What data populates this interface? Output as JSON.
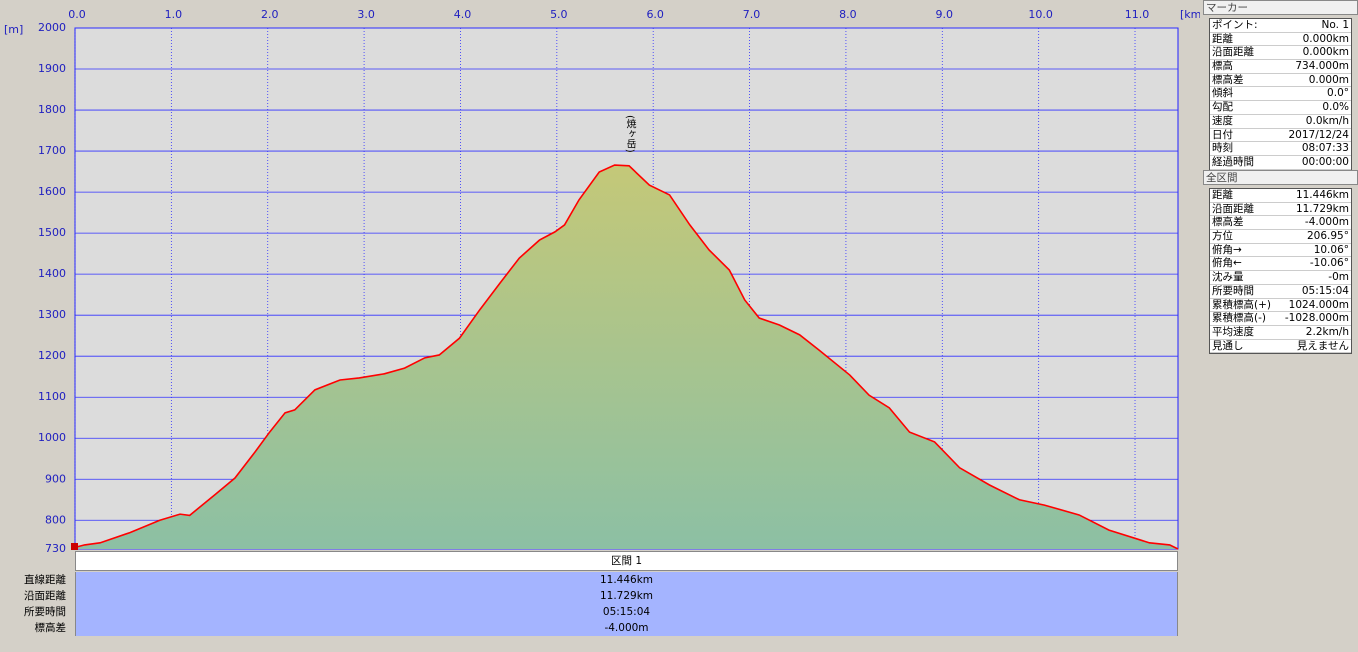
{
  "chart_data": {
    "type": "area",
    "x_label": "[km]",
    "y_label": "[m]",
    "x": [
      0,
      0.1,
      0.26,
      0.57,
      0.88,
      1.09,
      1.19,
      1.45,
      1.66,
      1.87,
      2.02,
      2.18,
      2.28,
      2.49,
      2.75,
      2.95,
      3.21,
      3.42,
      3.63,
      3.78,
      3.99,
      4.2,
      4.41,
      4.61,
      4.82,
      4.98,
      5.08,
      5.23,
      5.44,
      5.6,
      5.75,
      5.96,
      6.17,
      6.38,
      6.58,
      6.79,
      6.95,
      7.1,
      7.31,
      7.52,
      7.72,
      8.04,
      8.24,
      8.45,
      8.66,
      8.92,
      9.18,
      9.49,
      9.8,
      10.06,
      10.42,
      10.73,
      11.15,
      11.36,
      11.446
    ],
    "values": [
      734,
      740,
      745,
      770,
      800,
      815,
      812,
      862,
      903,
      967,
      1015,
      1062,
      1069,
      1118,
      1142,
      1147,
      1157,
      1171,
      1196,
      1203,
      1244,
      1313,
      1378,
      1439,
      1483,
      1503,
      1520,
      1581,
      1649,
      1666,
      1664,
      1617,
      1593,
      1520,
      1459,
      1410,
      1337,
      1293,
      1276,
      1252,
      1215,
      1154,
      1105,
      1074,
      1015,
      991,
      928,
      886,
      850,
      837,
      813,
      776,
      745,
      740,
      730
    ],
    "color": "#ff0000",
    "xlim": [
      0,
      11.446
    ],
    "ylim": [
      730,
      2000
    ],
    "xticks": [
      {
        "value": 0,
        "label": "0.0"
      },
      {
        "value": 1,
        "label": "1.0"
      },
      {
        "value": 2,
        "label": "2.0"
      },
      {
        "value": 3,
        "label": "3.0"
      },
      {
        "value": 4,
        "label": "4.0"
      },
      {
        "value": 5,
        "label": "5.0"
      },
      {
        "value": 6,
        "label": "6.0"
      },
      {
        "value": 7,
        "label": "7.0"
      },
      {
        "value": 8,
        "label": "8.0"
      },
      {
        "value": 9,
        "label": "9.0"
      },
      {
        "value": 10,
        "label": "10.0"
      },
      {
        "value": 11,
        "label": "11.0"
      }
    ],
    "yticks": [
      730,
      800,
      900,
      1000,
      1100,
      1200,
      1300,
      1400,
      1500,
      1600,
      1700,
      1800,
      1900,
      2000
    ],
    "grid": true,
    "annotation": "(焼ヶ岳)"
  },
  "marker_panel": {
    "title": "マーカー",
    "rows": [
      [
        "ポイント:",
        "No. 1"
      ],
      [
        "距離",
        "0.000km"
      ],
      [
        "沿面距離",
        "0.000km"
      ],
      [
        "標高",
        "734.000m"
      ],
      [
        "標高差",
        "0.000m"
      ],
      [
        "傾斜",
        "0.0°"
      ],
      [
        "勾配",
        "0.0%"
      ],
      [
        "速度",
        "0.0km/h"
      ],
      [
        "日付",
        "2017/12/24"
      ],
      [
        "時刻",
        "08:07:33"
      ],
      [
        "経過時間",
        "00:00:00"
      ]
    ]
  },
  "total_panel": {
    "title": "全区間",
    "rows": [
      [
        "距離",
        "11.446km"
      ],
      [
        "沿面距離",
        "11.729km"
      ],
      [
        "標高差",
        "-4.000m"
      ],
      [
        "方位",
        "206.95°"
      ],
      [
        "俯角→",
        "10.06°"
      ],
      [
        "俯角←",
        "-10.06°"
      ],
      [
        "沈み量",
        "-0m"
      ],
      [
        "所要時間",
        "05:15:04"
      ],
      [
        "累積標高(+)",
        "1024.000m"
      ],
      [
        "累積標高(-)",
        "-1028.000m"
      ],
      [
        "平均速度",
        "2.2km/h"
      ],
      [
        "見通し",
        "見えません"
      ]
    ]
  },
  "section_table": {
    "header": "区間 1",
    "rows": [
      [
        "直線距離",
        "11.446km"
      ],
      [
        "沿面距離",
        "11.729km"
      ],
      [
        "所要時間",
        "05:15:04"
      ],
      [
        "標高差",
        "-4.000m"
      ]
    ]
  }
}
